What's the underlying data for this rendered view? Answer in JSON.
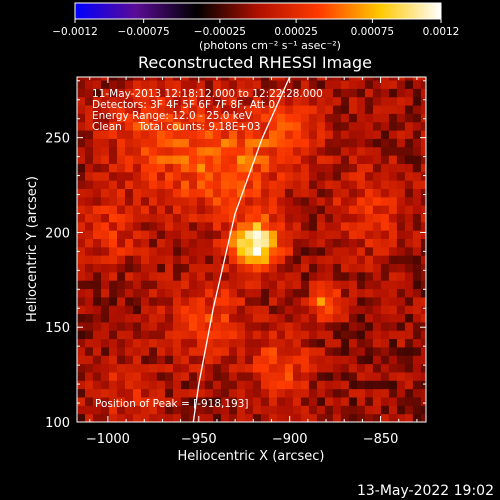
{
  "chart_data": {
    "type": "heatmap",
    "title": "Reconstructed RHESSI Image",
    "xlabel": "Heliocentric X (arcsec)",
    "ylabel": "Heliocentric Y (arcsec)",
    "xlim": [
      -1017,
      -825
    ],
    "ylim": [
      100,
      282
    ],
    "xticks": [
      -1000,
      -950,
      -900,
      -850
    ],
    "yticks": [
      100,
      150,
      200,
      250
    ],
    "xtick_labels": [
      "−1000",
      "−950",
      "−900",
      "−850"
    ],
    "ytick_labels": [
      "100",
      "150",
      "200",
      "250"
    ],
    "colorbar": {
      "range": [
        -0.0012,
        0.0012
      ],
      "ticks": [
        -0.0012,
        -0.00075,
        -0.00025,
        0.00025,
        0.00075,
        0.0012
      ],
      "tick_labels": [
        "−0.0012",
        "−0.00075",
        "−0.00025",
        "0.00025",
        "0.00075",
        "0.0012"
      ],
      "unit": "(photons cm⁻² s⁻¹ asec⁻²)",
      "colors": [
        "#0000ff",
        "#5a0c95",
        "#000000",
        "#b01000",
        "#ff3a00",
        "#ffc800",
        "#ffffff"
      ]
    },
    "annotations": [
      "11-May-2013 12:18:12.000 to 12:22:28.000",
      "Detectors: 3F 4F 5F 6F 7F 8F, Att 0",
      "Energy Range: 12.0 - 25.0 keV",
      "Clean     Total counts: 9.18E+03"
    ],
    "peak_label": "Position of Peak = [-918,193]",
    "peak": [
      -918,
      193
    ],
    "sources": [
      {
        "x": -918,
        "y": 193,
        "value": 0.0012,
        "width": 9
      },
      {
        "x": -935,
        "y": 235,
        "value": 0.00055,
        "width": 20
      },
      {
        "x": -975,
        "y": 250,
        "value": 0.0004,
        "width": 18
      },
      {
        "x": -1000,
        "y": 200,
        "value": 0.0003,
        "width": 14
      },
      {
        "x": -945,
        "y": 155,
        "value": 0.00035,
        "width": 16
      },
      {
        "x": -905,
        "y": 130,
        "value": 0.0004,
        "width": 12
      },
      {
        "x": -880,
        "y": 163,
        "value": 0.0007,
        "width": 6
      },
      {
        "x": -855,
        "y": 210,
        "value": 0.0003,
        "width": 16
      },
      {
        "x": -990,
        "y": 115,
        "value": 0.00025,
        "width": 12
      },
      {
        "x": -900,
        "y": 255,
        "value": 0.00035,
        "width": 14
      }
    ],
    "limb": [
      [
        -900,
        282
      ],
      [
        -915,
        250
      ],
      [
        -930,
        210
      ],
      [
        -942,
        160
      ],
      [
        -950,
        120
      ],
      [
        -953,
        100
      ]
    ]
  },
  "footer_date": "13-May-2022 19:02"
}
